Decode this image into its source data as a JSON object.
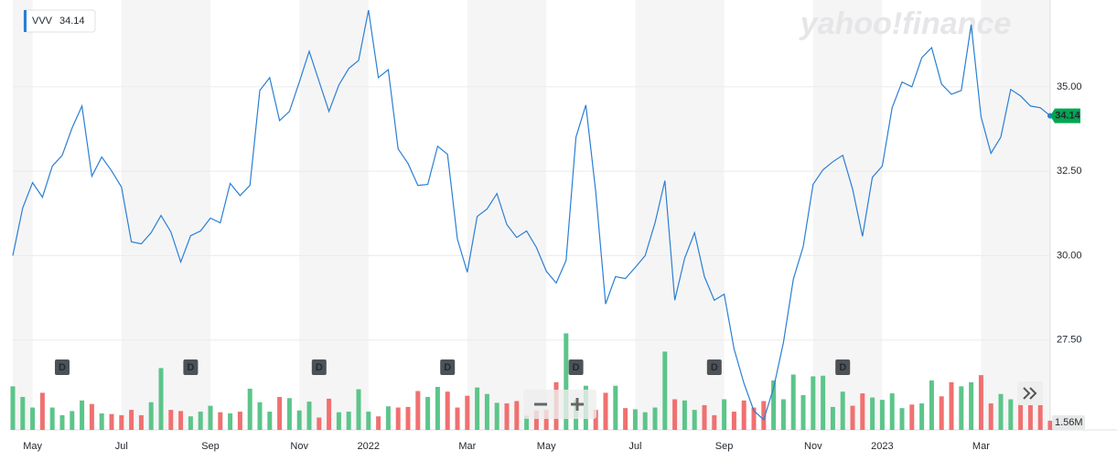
{
  "chart_data": {
    "type": "line",
    "logo": "yahoo!finance",
    "categories": [
      null,
      null,
      "May",
      null,
      null,
      null,
      null,
      null,
      null,
      null,
      null,
      "Jul",
      null,
      null,
      null,
      null,
      null,
      null,
      null,
      null,
      "Sep",
      null,
      null,
      null,
      null,
      null,
      null,
      null,
      null,
      "Nov",
      null,
      null,
      null,
      null,
      null,
      null,
      "2022",
      null,
      null,
      null,
      null,
      null,
      null,
      null,
      null,
      null,
      "Mar",
      null,
      null,
      null,
      null,
      null,
      null,
      null,
      "May",
      null,
      null,
      null,
      null,
      null,
      null,
      null,
      null,
      "Jul",
      null,
      null,
      null,
      null,
      null,
      null,
      null,
      null,
      "Sep",
      null,
      null,
      null,
      null,
      null,
      null,
      null,
      null,
      "Nov",
      null,
      null,
      null,
      null,
      null,
      null,
      "2023",
      null,
      null,
      null,
      null,
      null,
      null,
      null,
      null,
      null,
      "Mar",
      null,
      null,
      null,
      null,
      null,
      null,
      null
    ],
    "series": [
      {
        "name": "VVV",
        "color": "#2a7fd4",
        "values": [
          30.0,
          31.41,
          32.16,
          31.73,
          32.65,
          32.97,
          33.78,
          34.43,
          32.35,
          32.92,
          32.51,
          32.03,
          30.41,
          30.35,
          30.68,
          31.19,
          30.7,
          29.81,
          30.59,
          30.73,
          31.11,
          30.97,
          32.14,
          31.78,
          32.08,
          34.89,
          35.27,
          34.0,
          34.27,
          35.14,
          36.05,
          35.16,
          34.27,
          35.05,
          35.54,
          35.78,
          37.27,
          35.27,
          35.51,
          33.16,
          32.73,
          32.08,
          32.11,
          33.24,
          33.0,
          30.49,
          29.51,
          31.16,
          31.38,
          31.84,
          30.92,
          30.54,
          30.73,
          30.24,
          29.54,
          29.19,
          29.86,
          33.51,
          34.46,
          31.89,
          28.57,
          29.38,
          29.32,
          29.65,
          30.0,
          30.97,
          32.22,
          28.68,
          29.92,
          30.68,
          29.38,
          28.68,
          28.86,
          27.24,
          26.22,
          25.41,
          25.14,
          26.08,
          27.43,
          29.3,
          30.27,
          32.11,
          32.54,
          32.78,
          32.97,
          31.97,
          30.57,
          32.32,
          32.65,
          34.38,
          35.14,
          35.0,
          35.86,
          36.16,
          35.08,
          34.78,
          34.89,
          36.84,
          34.11,
          33.03,
          33.51,
          34.92,
          34.73,
          34.43,
          34.38,
          34.14
        ]
      }
    ],
    "ylim": [
      24.84,
      37.57
    ],
    "yticks": [
      {
        "value": 27.5,
        "label": "27.50"
      },
      {
        "value": 30,
        "label": "30.00"
      },
      {
        "value": 32.5,
        "label": "32.50"
      },
      {
        "value": 35,
        "label": "35.00"
      }
    ],
    "grid": true,
    "last_price_color": "#00a651",
    "volume": {
      "up_color": "#5cc58a",
      "down_color": "#f07070",
      "ylim": [
        0,
        73
      ],
      "values": [
        7.4,
        5.6,
        3.8,
        6.3,
        3.8,
        2.5,
        3.2,
        5.0,
        4.4,
        2.8,
        2.7,
        2.5,
        3.4,
        2.5,
        4.7,
        10.5,
        3.4,
        3.2,
        2.3,
        3.1,
        4.1,
        3.0,
        2.8,
        3.1,
        7.0,
        4.7,
        3.1,
        5.6,
        5.4,
        3.3,
        4.8,
        2.1,
        5.3,
        3.0,
        3.1,
        6.9,
        3.1,
        2.3,
        4.0,
        3.8,
        3.9,
        6.6,
        5.6,
        7.3,
        6.5,
        3.8,
        5.8,
        7.2,
        6.1,
        4.6,
        4.5,
        4.9,
        2.4,
        3.3,
        3.4,
        8.1,
        16.4,
        5.1,
        7.5,
        3.4,
        6.3,
        7.5,
        3.7,
        3.5,
        3.0,
        3.8,
        13.3,
        5.2,
        5.0,
        3.4,
        4.2,
        2.5,
        5.2,
        3.1,
        5.0,
        3.8,
        4.9,
        8.4,
        5.2,
        9.4,
        5.9,
        9.1,
        9.2,
        3.9,
        6.5,
        4.1,
        6.2,
        5.5,
        5.1,
        6.2,
        3.7,
        4.3,
        4.5,
        8.4,
        5.7,
        8.1,
        7.4,
        8.1,
        9.3,
        4.5,
        6.1,
        5.2,
        5.5,
        4.9,
        4.2,
        1.56
      ],
      "value_labels": [
        null,
        null,
        null,
        null,
        null,
        null,
        null,
        null,
        null,
        null,
        null,
        null,
        null,
        null,
        null,
        null,
        null,
        null,
        null,
        null,
        null,
        null,
        null,
        null,
        null,
        null,
        null,
        null,
        null,
        null,
        null,
        null,
        null,
        null,
        null,
        null,
        null,
        null,
        null,
        null,
        null,
        null,
        null,
        null,
        null,
        null,
        null,
        null,
        null,
        null,
        null,
        null,
        null,
        null,
        null,
        null,
        null,
        null,
        null,
        null,
        null,
        null,
        null,
        null,
        null,
        null,
        null,
        null,
        null,
        null,
        null,
        null,
        null,
        null,
        null,
        null,
        null,
        null,
        null,
        null,
        null,
        null,
        null,
        null,
        null,
        null,
        null,
        null,
        null,
        null,
        null,
        null,
        null,
        null,
        null,
        null,
        null,
        null,
        null,
        null,
        null,
        null,
        null,
        null,
        null,
        "1.56M"
      ]
    },
    "dividend_label": "D",
    "dividend_index": [
      5,
      18,
      31,
      44,
      57,
      71,
      84
    ]
  }
}
